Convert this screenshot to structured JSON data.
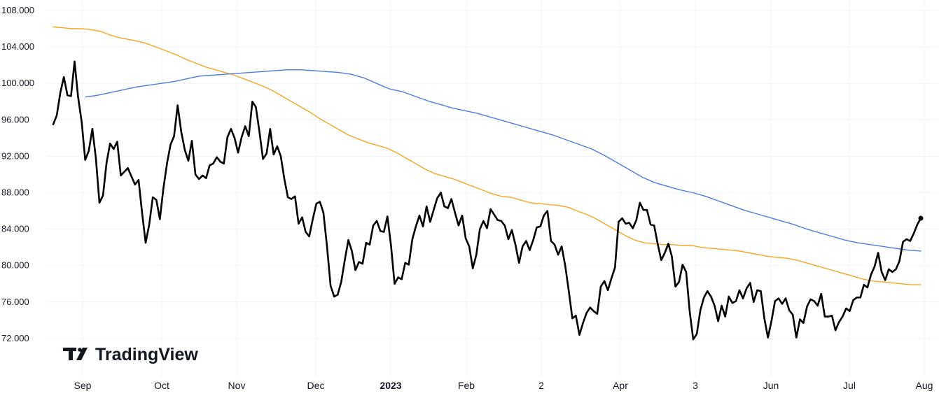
{
  "chart_data": {
    "type": "line",
    "title": "",
    "xlabel": "",
    "ylabel": "",
    "ylim": [
      70.0,
      109.0
    ],
    "y_ticks": [
      "108.000",
      "104.000",
      "100.000",
      "96.000",
      "92.000",
      "88.000",
      "84.000",
      "80.000",
      "76.000",
      "72.000"
    ],
    "x_ticks": [
      {
        "label": "Sep",
        "bold": false
      },
      {
        "label": "Oct",
        "bold": false
      },
      {
        "label": "Nov",
        "bold": false
      },
      {
        "label": "Dec",
        "bold": false
      },
      {
        "label": "2023",
        "bold": true
      },
      {
        "label": "Feb",
        "bold": false
      },
      {
        "label": "2",
        "bold": false
      },
      {
        "label": "Apr",
        "bold": false
      },
      {
        "label": "3",
        "bold": false
      },
      {
        "label": "Jun",
        "bold": false
      },
      {
        "label": "Jul",
        "bold": false
      },
      {
        "label": "Aug",
        "bold": false
      }
    ],
    "grid": true,
    "series": [
      {
        "color": "#000000",
        "values": [
          95.5,
          96.5,
          99.0,
          100.7,
          98.7,
          98.6,
          102.4,
          98.5,
          95.8,
          91.6,
          92.6,
          95.0,
          91.8,
          86.9,
          87.7,
          91.3,
          93.4,
          92.8,
          93.6,
          89.9,
          90.3,
          90.7,
          89.8,
          88.9,
          89.4,
          85.8,
          82.5,
          84.5,
          87.5,
          87.2,
          85.1,
          88.5,
          91.2,
          93.3,
          94.2,
          97.6,
          94.7,
          92.7,
          91.5,
          93.7,
          90.0,
          89.5,
          89.9,
          89.6,
          91.0,
          91.2,
          91.9,
          91.4,
          91.2,
          94.1,
          95.0,
          94.0,
          92.4,
          94.1,
          95.3,
          94.2,
          98.0,
          97.4,
          94.7,
          91.7,
          92.3,
          95.0,
          92.2,
          93.1,
          92.0,
          89.5,
          87.5,
          87.3,
          87.6,
          84.6,
          85.3,
          83.7,
          83.2,
          85.1,
          86.8,
          87.0,
          85.8,
          82.1,
          77.8,
          76.6,
          76.8,
          78.2,
          80.6,
          82.8,
          81.6,
          79.5,
          80.4,
          80.2,
          82.5,
          82.3,
          84.4,
          84.9,
          83.8,
          83.7,
          85.4,
          82.2,
          78.0,
          78.7,
          78.5,
          80.3,
          80.1,
          82.9,
          84.3,
          85.5,
          84.3,
          86.5,
          84.8,
          86.1,
          87.4,
          88.0,
          86.5,
          86.3,
          87.3,
          85.8,
          84.4,
          85.5,
          83.0,
          82.1,
          79.7,
          81.2,
          84.0,
          84.9,
          84.1,
          86.2,
          85.6,
          85.0,
          84.9,
          84.4,
          82.9,
          83.9,
          82.3,
          80.3,
          82.1,
          82.7,
          81.7,
          82.8,
          84.2,
          84.3,
          85.5,
          86.0,
          82.7,
          82.3,
          81.2,
          82.1,
          80.0,
          77.2,
          74.2,
          74.5,
          72.4,
          73.7,
          74.8,
          75.4,
          75.0,
          74.7,
          77.7,
          78.3,
          77.3,
          78.6,
          79.8,
          84.8,
          85.2,
          84.6,
          84.7,
          84.1,
          85.0,
          86.9,
          86.1,
          86.1,
          84.5,
          84.4,
          82.4,
          80.6,
          81.4,
          82.4,
          81.0,
          77.7,
          78.2,
          80.1,
          79.3,
          75.0,
          71.9,
          72.5,
          75.1,
          76.5,
          77.2,
          76.6,
          75.6,
          73.9,
          75.6,
          74.4,
          76.6,
          75.9,
          76.1,
          77.3,
          76.4,
          77.5,
          78.1,
          76.0,
          77.3,
          77.2,
          74.2,
          72.1,
          73.9,
          76.1,
          76.4,
          75.8,
          76.4,
          75.1,
          74.6,
          72.1,
          74.1,
          73.7,
          75.5,
          76.3,
          76.1,
          75.6,
          76.9,
          74.4,
          74.4,
          74.5,
          72.9,
          73.8,
          74.4,
          75.3,
          75.0,
          76.2,
          76.5,
          76.5,
          77.9,
          77.6,
          79.0,
          79.9,
          81.4,
          79.3,
          78.4,
          79.6,
          79.3,
          79.6,
          80.5,
          82.6,
          82.9,
          82.7,
          83.5,
          84.5,
          85.2
        ]
      },
      {
        "color": "#f5a623",
        "values": [
          106.2,
          106.1,
          106.0,
          106.0,
          105.9,
          105.7,
          105.3,
          105.0,
          104.8,
          104.6,
          104.3,
          103.9,
          103.5,
          103.1,
          102.6,
          102.2,
          101.8,
          101.5,
          101.2,
          100.9,
          100.5,
          100.1,
          99.7,
          99.2,
          98.6,
          98.0,
          97.4,
          96.8,
          96.1,
          95.5,
          94.9,
          94.3,
          93.9,
          93.5,
          93.2,
          92.9,
          92.4,
          91.8,
          91.2,
          90.6,
          90.1,
          89.8,
          89.5,
          89.1,
          88.7,
          88.3,
          87.9,
          87.6,
          87.5,
          87.2,
          86.9,
          86.8,
          86.7,
          86.6,
          86.4,
          86.0,
          85.6,
          85.1,
          84.5,
          83.9,
          83.3,
          82.8,
          82.5,
          82.4,
          82.3,
          82.3,
          82.2,
          82.2,
          82.0,
          81.9,
          81.8,
          81.7,
          81.6,
          81.4,
          81.2,
          81.0,
          80.9,
          80.8,
          80.6,
          80.3,
          80.0,
          79.7,
          79.4,
          79.1,
          78.8,
          78.5,
          78.3,
          78.2,
          78.1,
          78.0,
          77.9,
          77.9
        ]
      },
      {
        "color": "#4a7de0",
        "values": [
          98.5,
          98.7,
          99.0,
          99.3,
          99.6,
          99.8,
          100.0,
          100.2,
          100.5,
          100.8,
          100.9,
          101.0,
          101.1,
          101.2,
          101.3,
          101.4,
          101.5,
          101.5,
          101.4,
          101.3,
          101.2,
          101.0,
          100.6,
          100.0,
          99.4,
          99.1,
          98.6,
          98.1,
          97.7,
          97.3,
          97.0,
          96.7,
          96.3,
          95.9,
          95.5,
          95.1,
          94.7,
          94.3,
          93.8,
          93.3,
          92.8,
          92.1,
          91.3,
          90.5,
          89.7,
          89.1,
          88.7,
          88.3,
          88.0,
          87.6,
          87.1,
          86.6,
          86.1,
          85.7,
          85.3,
          84.9,
          84.5,
          84.0,
          83.6,
          83.2,
          82.8,
          82.5,
          82.3,
          82.1,
          81.9,
          81.7,
          81.6
        ]
      }
    ],
    "last_point_marker": true
  },
  "branding": {
    "logo_text": "TradingView"
  }
}
